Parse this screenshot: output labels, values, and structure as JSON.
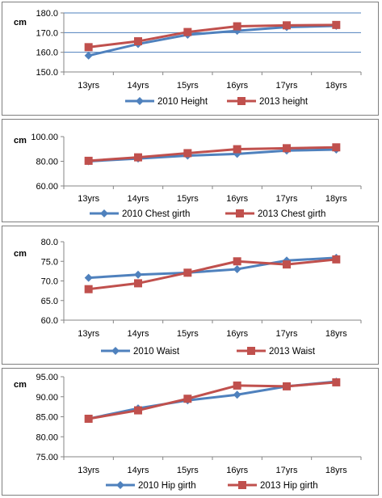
{
  "colors": {
    "s2010": "#4f81bd",
    "s2013": "#c0504d",
    "grid": "#4f81bd",
    "axis": "#868686"
  },
  "chart_data": [
    {
      "type": "line",
      "ylabel": "cm",
      "categories": [
        "13yrs",
        "14yrs",
        "15yrs",
        "16yrs",
        "17yrs",
        "18yrs"
      ],
      "ylim": [
        150,
        180
      ],
      "yticks": [
        "150.0",
        "160.0",
        "170.0",
        "180.0"
      ],
      "grid": true,
      "legend": "bottom",
      "series": [
        {
          "name": "2010 Height",
          "values": [
            158.3,
            164.2,
            168.9,
            170.9,
            172.8,
            173.4
          ]
        },
        {
          "name": "2013 height",
          "values": [
            162.6,
            165.6,
            170.3,
            173.2,
            173.7,
            173.9
          ]
        }
      ]
    },
    {
      "type": "line",
      "ylabel": "cm",
      "categories": [
        "13yrs",
        "14yrs",
        "15yrs",
        "16yrs",
        "17yrs",
        "18yrs"
      ],
      "ylim": [
        60,
        100
      ],
      "yticks": [
        "60.00",
        "80.00",
        "100.00"
      ],
      "grid": false,
      "legend": "bottom",
      "series": [
        {
          "name": "2010 Chest girth",
          "values": [
            80.0,
            82.2,
            84.6,
            86.0,
            88.7,
            89.5
          ]
        },
        {
          "name": "2013 Chest girth",
          "values": [
            80.4,
            83.2,
            86.6,
            89.8,
            90.6,
            91.3
          ]
        }
      ]
    },
    {
      "type": "line",
      "ylabel": "cm",
      "categories": [
        "13yrs",
        "14yrs",
        "15yrs",
        "16yrs",
        "17yrs",
        "18yrs"
      ],
      "ylim": [
        60,
        80
      ],
      "yticks": [
        "60.0",
        "65.0",
        "70.0",
        "75.0",
        "80.0"
      ],
      "grid": false,
      "legend": "bottom",
      "series": [
        {
          "name": "2010 Waist",
          "values": [
            70.8,
            71.6,
            72.1,
            73.0,
            75.2,
            75.9
          ]
        },
        {
          "name": "2013 Waist",
          "values": [
            67.9,
            69.4,
            72.1,
            75.0,
            74.2,
            75.5
          ]
        }
      ]
    },
    {
      "type": "line",
      "ylabel": "cm",
      "categories": [
        "13yrs",
        "14yrs",
        "15yrs",
        "16yrs",
        "17yrs",
        "18yrs"
      ],
      "ylim": [
        75,
        95
      ],
      "yticks": [
        "75.00",
        "80.00",
        "85.00",
        "90.00",
        "95.00"
      ],
      "grid": false,
      "legend": "bottom",
      "series": [
        {
          "name": "2010 Hip girth",
          "values": [
            84.5,
            87.1,
            89.1,
            90.5,
            92.6,
            93.8
          ]
        },
        {
          "name": "2013 Hip girth",
          "values": [
            84.5,
            86.6,
            89.5,
            92.8,
            92.6,
            93.6
          ]
        }
      ]
    }
  ]
}
